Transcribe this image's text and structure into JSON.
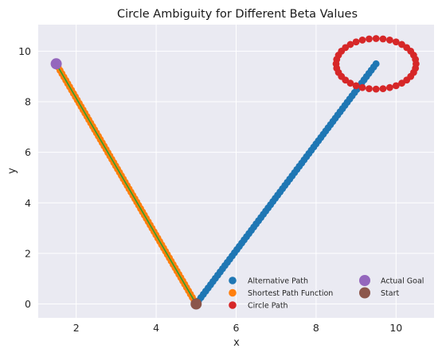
{
  "chart_data": {
    "type": "scatter",
    "title": "Circle Ambiguity for Different Beta Values",
    "xlabel": "x",
    "ylabel": "y",
    "xlim": [
      1.05,
      10.95
    ],
    "ylim": [
      -0.55,
      11.05
    ],
    "xticks": [
      "2",
      "4",
      "6",
      "8",
      "10"
    ],
    "xtick_values": [
      2,
      4,
      6,
      8,
      10
    ],
    "yticks": [
      "0",
      "2",
      "4",
      "6",
      "8",
      "10"
    ],
    "ytick_values": [
      0,
      2,
      4,
      6,
      8,
      10
    ],
    "grid": true,
    "legend_placement": "lower-right",
    "series": [
      {
        "name": "Alternative Path",
        "color": "#1f77b4",
        "line": {
          "from": [
            5.0,
            0.0
          ],
          "to": [
            9.5,
            9.5
          ],
          "count": 76
        }
      },
      {
        "name": "Shortest Path Function",
        "color": "#ff7f0e",
        "line": {
          "from": [
            5.0,
            0.0
          ],
          "to": [
            1.5,
            9.5
          ],
          "count": 74
        },
        "overlay_line_color": "#2ca02c"
      },
      {
        "name": "Circle Path",
        "color": "#d62728",
        "circle": {
          "center": [
            9.5,
            9.5
          ],
          "radius": 1.0,
          "count": 36
        }
      },
      {
        "name": "Actual Goal",
        "color": "#9467bd",
        "points": [
          [
            1.5,
            9.5
          ]
        ]
      },
      {
        "name": "Start",
        "color": "#8c564b",
        "points": [
          [
            5.0,
            0.0
          ]
        ]
      }
    ]
  }
}
